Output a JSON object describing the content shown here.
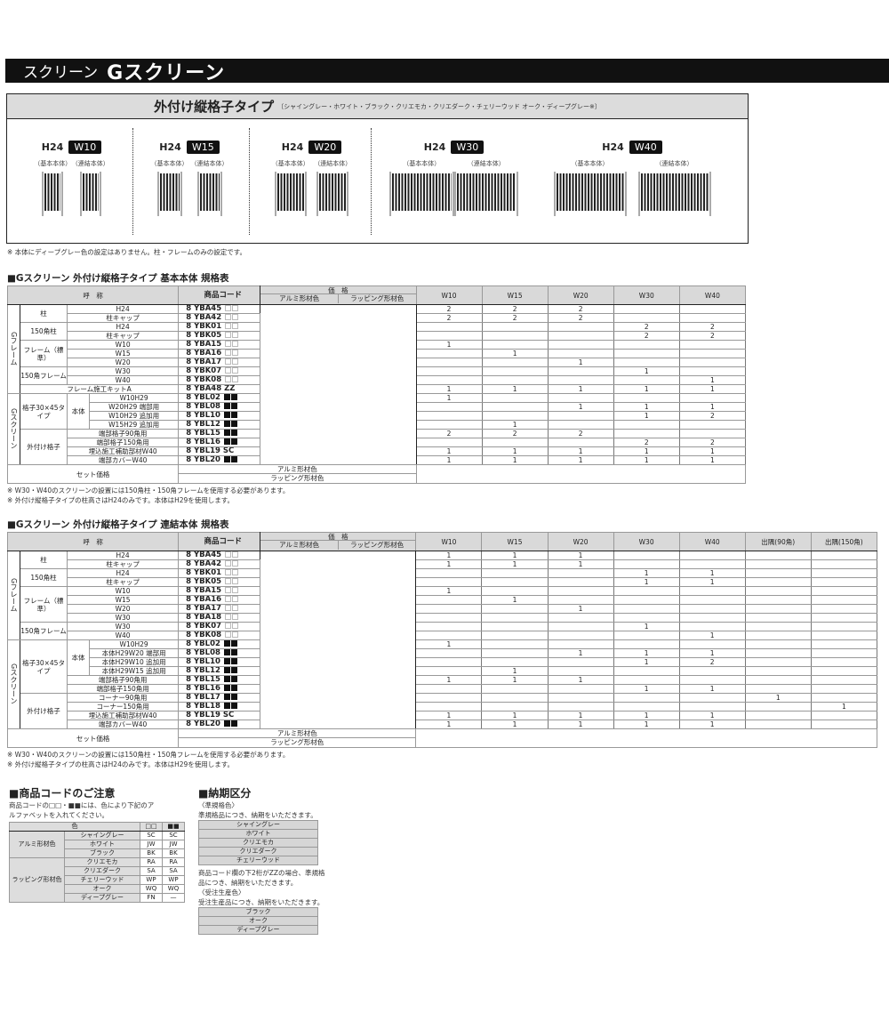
{
  "header": {
    "category": "スクリーン",
    "product": "Gスクリーン"
  },
  "type_box": {
    "title": "外付け縦格子タイプ",
    "colors": "〔シャイングレー・ホワイト・ブラック・クリエモカ・クリエダーク・チェリーウッド オーク・ディープグレー※〕",
    "models": [
      {
        "height": "H24",
        "width": "W10",
        "labels": [
          "（基本本体）",
          "（連結本体）"
        ]
      },
      {
        "height": "H24",
        "width": "W15",
        "labels": [
          "（基本本体）",
          "（連結本体）"
        ]
      },
      {
        "height": "H24",
        "width": "W20",
        "labels": [
          "（基本本体）",
          "（連結本体）"
        ]
      },
      {
        "height": "H24",
        "width": "W30",
        "labels": [
          "（基本本体）",
          "（連結本体）"
        ]
      },
      {
        "height": "H24",
        "width": "W40",
        "labels": [
          "（基本本体）",
          "（連結本体）"
        ]
      }
    ],
    "note": "※ 本体にディープグレー色の設定はありません。柱・フレームのみの設定です。"
  },
  "common": {
    "name_header": "呼　称",
    "code_header": "商品コード",
    "price_header": "価　格",
    "alumi": "アルミ形材色",
    "wrapping": "ラッピング形材色",
    "set_price": "セット価格"
  },
  "table_basic": {
    "title": "■Gスクリーン 外付け縦格子タイプ 基本本体 規格表",
    "columns": [
      "W10",
      "W15",
      "W20",
      "W30",
      "W40"
    ],
    "rows": [
      {
        "group": "Gフレーム",
        "sub": "柱",
        "name": "H24",
        "code": "8 YBA45",
        "suffix": "□□",
        "qty": [
          "2",
          "2",
          "2",
          "",
          ""
        ]
      },
      {
        "group": "Gフレーム",
        "sub": "柱",
        "name": "柱キャップ",
        "code": "8 YBA42",
        "suffix": "□□",
        "qty": [
          "2",
          "2",
          "2",
          "",
          ""
        ]
      },
      {
        "group": "Gフレーム",
        "sub": "150角柱",
        "name": "H24",
        "code": "8 YBK01",
        "suffix": "□□",
        "qty": [
          "",
          "",
          "",
          "2",
          "2"
        ]
      },
      {
        "group": "Gフレーム",
        "sub": "150角柱",
        "name": "柱キャップ",
        "code": "8 YBK05",
        "suffix": "□□",
        "qty": [
          "",
          "",
          "",
          "2",
          "2"
        ]
      },
      {
        "group": "Gフレーム",
        "sub": "フレーム（標準）",
        "name": "W10",
        "code": "8 YBA15",
        "suffix": "□□",
        "qty": [
          "1",
          "",
          "",
          "",
          ""
        ]
      },
      {
        "group": "Gフレーム",
        "sub": "フレーム（標準）",
        "name": "W15",
        "code": "8 YBA16",
        "suffix": "□□",
        "qty": [
          "",
          "1",
          "",
          "",
          ""
        ]
      },
      {
        "group": "Gフレーム",
        "sub": "フレーム（標準）",
        "name": "W20",
        "code": "8 YBA17",
        "suffix": "□□",
        "qty": [
          "",
          "",
          "1",
          "",
          ""
        ]
      },
      {
        "group": "Gフレーム",
        "sub": "150角フレーム",
        "name": "W30",
        "code": "8 YBK07",
        "suffix": "□□",
        "qty": [
          "",
          "",
          "",
          "1",
          ""
        ]
      },
      {
        "group": "Gフレーム",
        "sub": "150角フレーム",
        "name": "W40",
        "code": "8 YBK08",
        "suffix": "□□",
        "qty": [
          "",
          "",
          "",
          "",
          "1"
        ]
      },
      {
        "group": "Gフレーム",
        "name": "フレーム施工キットA",
        "code": "8 YBA48",
        "suffix": "ZZ",
        "qty": [
          "1",
          "1",
          "1",
          "1",
          "1"
        ]
      },
      {
        "group": "Gスクリーン",
        "sub": "格子30×45タイプ",
        "sub2": "本体",
        "name": "W10H29",
        "code": "8 YBL02",
        "suffix": "■■",
        "qty": [
          "1",
          "",
          "",
          "",
          ""
        ]
      },
      {
        "group": "Gスクリーン",
        "sub": "格子30×45タイプ",
        "sub2": "本体",
        "name": "W20H29 端部用",
        "code": "8 YBL08",
        "suffix": "■■",
        "qty": [
          "",
          "",
          "1",
          "1",
          "1"
        ]
      },
      {
        "group": "Gスクリーン",
        "sub": "格子30×45タイプ",
        "sub2": "本体",
        "name": "W10H29 追加用",
        "code": "8 YBL10",
        "suffix": "■■",
        "qty": [
          "",
          "",
          "",
          "1",
          "2"
        ]
      },
      {
        "group": "Gスクリーン",
        "sub": "格子30×45タイプ",
        "sub2": "本体",
        "name": "W15H29 追加用",
        "code": "8 YBL12",
        "suffix": "■■",
        "qty": [
          "",
          "1",
          "",
          "",
          ""
        ]
      },
      {
        "group": "Gスクリーン",
        "sub": "外付け格子",
        "name": "端部格子90角用",
        "code": "8 YBL15",
        "suffix": "■■",
        "qty": [
          "2",
          "2",
          "2",
          "",
          ""
        ]
      },
      {
        "group": "Gスクリーン",
        "sub": "外付け格子",
        "name": "端部格子150角用",
        "code": "8 YBL16",
        "suffix": "■■",
        "qty": [
          "",
          "",
          "",
          "2",
          "2"
        ]
      },
      {
        "group": "Gスクリーン",
        "sub": "外付け格子",
        "name": "埋込施工補助部材W40",
        "code": "8 YBL19",
        "suffix": "SC",
        "qty": [
          "1",
          "1",
          "1",
          "1",
          "1"
        ]
      },
      {
        "group": "Gスクリーン",
        "sub": "外付け格子",
        "name": "端部カバーW40",
        "code": "8 YBL20",
        "suffix": "■■",
        "qty": [
          "1",
          "1",
          "1",
          "1",
          "1"
        ]
      }
    ],
    "notes": [
      "※ W30・W40のスクリーンの設置には150角柱・150角フレームを使用する必要があります。",
      "※ 外付け縦格子タイプの柱高さはH24のみです。本体はH29を使用します。"
    ]
  },
  "table_linked": {
    "title": "■Gスクリーン 外付け縦格子タイプ 連結本体 規格表",
    "columns": [
      "W10",
      "W15",
      "W20",
      "W30",
      "W40",
      "出隅(90角)",
      "出隅(150角)"
    ],
    "rows": [
      {
        "group": "Gフレーム",
        "sub": "柱",
        "name": "H24",
        "code": "8 YBA45",
        "suffix": "□□",
        "qty": [
          "1",
          "1",
          "1",
          "",
          "",
          "",
          ""
        ]
      },
      {
        "group": "Gフレーム",
        "sub": "柱",
        "name": "柱キャップ",
        "code": "8 YBA42",
        "suffix": "□□",
        "qty": [
          "1",
          "1",
          "1",
          "",
          "",
          "",
          ""
        ]
      },
      {
        "group": "Gフレーム",
        "sub": "150角柱",
        "name": "H24",
        "code": "8 YBK01",
        "suffix": "□□",
        "qty": [
          "",
          "",
          "",
          "1",
          "1",
          "",
          ""
        ]
      },
      {
        "group": "Gフレーム",
        "sub": "150角柱",
        "name": "柱キャップ",
        "code": "8 YBK05",
        "suffix": "□□",
        "qty": [
          "",
          "",
          "",
          "1",
          "1",
          "",
          ""
        ]
      },
      {
        "group": "Gフレーム",
        "sub": "フレーム（標準）",
        "name": "W10",
        "code": "8 YBA15",
        "suffix": "□□",
        "qty": [
          "1",
          "",
          "",
          "",
          "",
          "",
          ""
        ]
      },
      {
        "group": "Gフレーム",
        "sub": "フレーム（標準）",
        "name": "W15",
        "code": "8 YBA16",
        "suffix": "□□",
        "qty": [
          "",
          "1",
          "",
          "",
          "",
          "",
          ""
        ]
      },
      {
        "group": "Gフレーム",
        "sub": "フレーム（標準）",
        "name": "W20",
        "code": "8 YBA17",
        "suffix": "□□",
        "qty": [
          "",
          "",
          "1",
          "",
          "",
          "",
          ""
        ]
      },
      {
        "group": "Gフレーム",
        "sub": "フレーム（標準）",
        "name": "W30",
        "code": "8 YBA18",
        "suffix": "□□",
        "qty": [
          "",
          "",
          "",
          "",
          "",
          "",
          ""
        ]
      },
      {
        "group": "Gフレーム",
        "sub": "150角フレーム",
        "name": "W30",
        "code": "8 YBK07",
        "suffix": "□□",
        "qty": [
          "",
          "",
          "",
          "1",
          "",
          "",
          ""
        ]
      },
      {
        "group": "Gフレーム",
        "sub": "150角フレーム",
        "name": "W40",
        "code": "8 YBK08",
        "suffix": "□□",
        "qty": [
          "",
          "",
          "",
          "",
          "1",
          "",
          ""
        ]
      },
      {
        "group": "Gスクリーン",
        "sub": "格子30×45タイプ",
        "sub2": "本体",
        "name": "W10H29",
        "code": "8 YBL02",
        "suffix": "■■",
        "qty": [
          "1",
          "",
          "",
          "",
          "",
          "",
          ""
        ]
      },
      {
        "group": "Gスクリーン",
        "sub": "格子30×45タイプ",
        "sub2": "本体",
        "name": "本体H29W20 端部用",
        "code": "8 YBL08",
        "suffix": "■■",
        "qty": [
          "",
          "",
          "1",
          "1",
          "1",
          "",
          ""
        ]
      },
      {
        "group": "Gスクリーン",
        "sub": "格子30×45タイプ",
        "sub2": "本体",
        "name": "本体H29W10 追加用",
        "code": "8 YBL10",
        "suffix": "■■",
        "qty": [
          "",
          "",
          "",
          "1",
          "2",
          "",
          ""
        ]
      },
      {
        "group": "Gスクリーン",
        "sub": "格子30×45タイプ",
        "sub2": "本体",
        "name": "本体H29W15 追加用",
        "code": "8 YBL12",
        "suffix": "■■",
        "qty": [
          "",
          "1",
          "",
          "",
          "",
          "",
          ""
        ]
      },
      {
        "group": "Gスクリーン",
        "sub": "格子30×45タイプ",
        "name": "端部格子90角用",
        "code": "8 YBL15",
        "suffix": "■■",
        "qty": [
          "1",
          "1",
          "1",
          "",
          "",
          "",
          ""
        ]
      },
      {
        "group": "Gスクリーン",
        "sub": "格子30×45タイプ",
        "name": "端部格子150角用",
        "code": "8 YBL16",
        "suffix": "■■",
        "qty": [
          "",
          "",
          "",
          "1",
          "1",
          "",
          ""
        ]
      },
      {
        "group": "Gスクリーン",
        "sub": "外付け格子",
        "name": "コーナー90角用",
        "code": "8 YBL17",
        "suffix": "■■",
        "qty": [
          "",
          "",
          "",
          "",
          "",
          "1",
          ""
        ]
      },
      {
        "group": "Gスクリーン",
        "sub": "外付け格子",
        "name": "コーナー150角用",
        "code": "8 YBL18",
        "suffix": "■■",
        "qty": [
          "",
          "",
          "",
          "",
          "",
          "",
          "1"
        ]
      },
      {
        "group": "Gスクリーン",
        "sub": "外付け格子",
        "name": "埋込施工補助部材W40",
        "code": "8 YBL19",
        "suffix": "SC",
        "qty": [
          "1",
          "1",
          "1",
          "1",
          "1",
          "",
          ""
        ]
      },
      {
        "group": "Gスクリーン",
        "sub": "外付け格子",
        "name": "端部カバーW40",
        "code": "8 YBL20",
        "suffix": "■■",
        "qty": [
          "1",
          "1",
          "1",
          "1",
          "1",
          "",
          ""
        ]
      }
    ],
    "notes": [
      "※ W30・W40のスクリーンの設置には150角柱・150角フレームを使用する必要があります。",
      "※ 外付け縦格子タイプの柱高さはH24のみです。本体はH29を使用します。"
    ]
  },
  "code_notes": {
    "title": "■商品コードのご注意",
    "desc": "商品コードの□□・■■には、色により下記のアルファベットを入れてください。",
    "color_header": "色",
    "col_white": "□□",
    "col_black": "■■",
    "groups": [
      {
        "name": "アルミ形材色",
        "items": [
          [
            "シャイングレー",
            "SC",
            "SC"
          ],
          [
            "ホワイト",
            "JW",
            "JW"
          ],
          [
            "ブラック",
            "BK",
            "BK"
          ]
        ]
      },
      {
        "name": "ラッピング形材色",
        "items": [
          [
            "クリエモカ",
            "RA",
            "RA"
          ],
          [
            "クリエダーク",
            "SA",
            "SA"
          ],
          [
            "チェリーウッド",
            "WP",
            "WP"
          ],
          [
            "オーク",
            "WQ",
            "WQ"
          ],
          [
            "ディープグレー",
            "FN",
            "—"
          ]
        ]
      }
    ]
  },
  "delivery": {
    "title": "■納期区分",
    "standard_label": "〈準規格色〉",
    "standard_desc": "準規格品につき、納期をいただきます。",
    "standard_colors": [
      "シャイングレー",
      "ホワイト",
      "クリエモカ",
      "クリエダーク",
      "チェリーウッド"
    ],
    "zz_note": "商品コード欄の下2桁がZZの場合、準規格品につき、納期をいただきます。",
    "order_label": "〈受注生産色〉",
    "order_desc": "受注生産品につき、納期をいただきます。",
    "order_colors": [
      "ブラック",
      "オーク",
      "ディープグレー"
    ]
  }
}
